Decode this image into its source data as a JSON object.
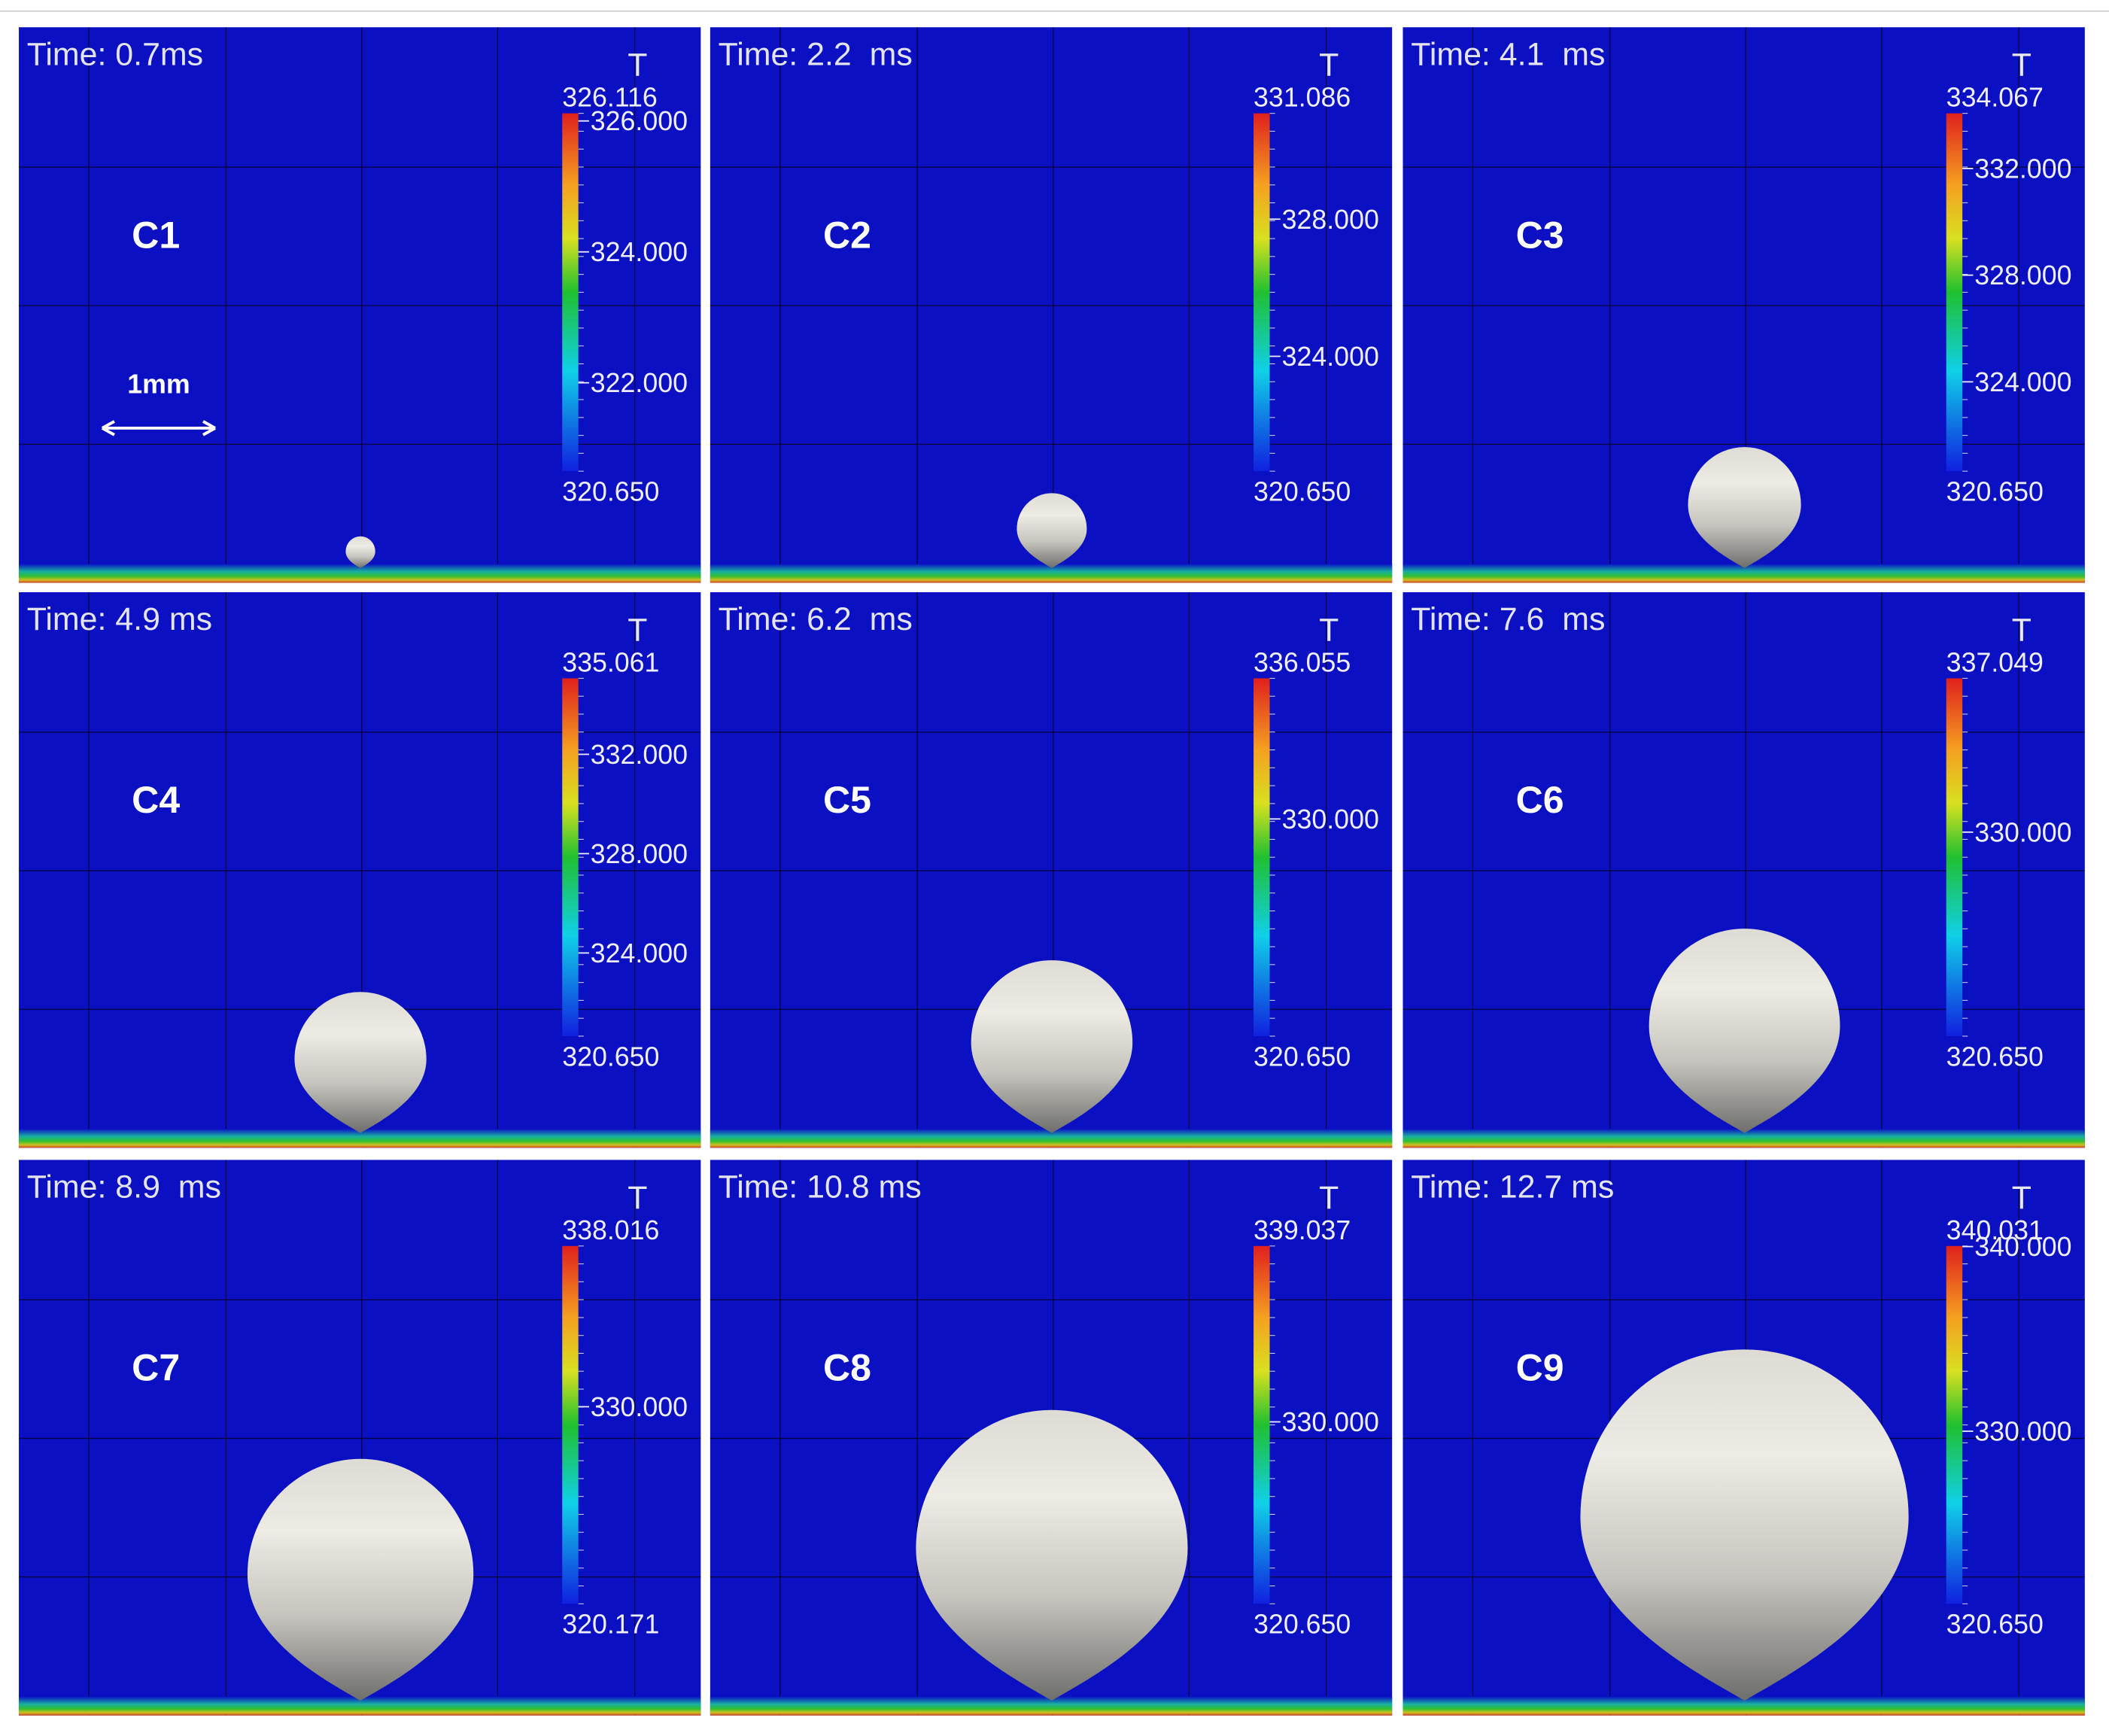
{
  "scale_label": "1mm",
  "panels": [
    {
      "label": "C1",
      "time": "Time: 0.7ms",
      "legend_title": "T",
      "max": "326.116",
      "ticks": [
        "326.000",
        "324.000",
        "322.000"
      ],
      "min": "320.650"
    },
    {
      "label": "C2",
      "time": "Time: 2.2  ms",
      "legend_title": "T",
      "max": "331.086",
      "ticks": [
        "328.000",
        "324.000"
      ],
      "min": "320.650"
    },
    {
      "label": "C3",
      "time": "Time: 4.1  ms",
      "legend_title": "T",
      "max": "334.067",
      "ticks": [
        "332.000",
        "328.000",
        "324.000"
      ],
      "min": "320.650"
    },
    {
      "label": "C4",
      "time": "Time: 4.9 ms",
      "legend_title": "T",
      "max": "335.061",
      "ticks": [
        "332.000",
        "328.000",
        "324.000"
      ],
      "min": "320.650"
    },
    {
      "label": "C5",
      "time": "Time: 6.2  ms",
      "legend_title": "T",
      "max": "336.055",
      "ticks": [
        "330.000"
      ],
      "min": "320.650"
    },
    {
      "label": "C6",
      "time": "Time: 7.6  ms",
      "legend_title": "T",
      "max": "337.049",
      "ticks": [
        "330.000"
      ],
      "min": "320.650"
    },
    {
      "label": "C7",
      "time": "Time: 8.9  ms",
      "legend_title": "T",
      "max": "338.016",
      "ticks": [
        "330.000"
      ],
      "min": "320.171"
    },
    {
      "label": "C8",
      "time": "Time: 10.8 ms",
      "legend_title": "T",
      "max": "339.037",
      "ticks": [
        "330.000"
      ],
      "min": "320.650"
    },
    {
      "label": "C9",
      "time": "Time: 12.7 ms",
      "legend_title": "T",
      "max": "340.031",
      "ticks": [
        "340.000",
        "330.000"
      ],
      "min": "320.650"
    }
  ]
}
